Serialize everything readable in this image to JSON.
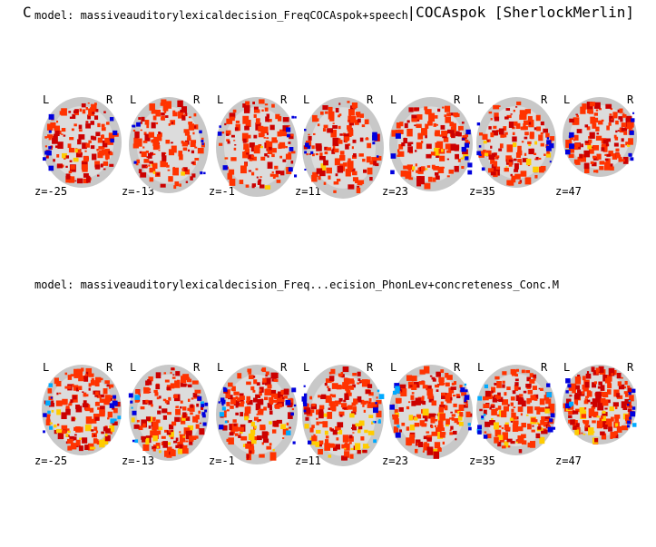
{
  "panel_letter": "C",
  "figure_title_right": "|COCAspok [SherlockMerlin]",
  "rows": [
    {
      "title": "model: massiveauditorylexicaldecision_FreqCOCAspok+speech",
      "slices": [
        {
          "z": "z=-25",
          "left": "L",
          "right": "R"
        },
        {
          "z": "z=-13",
          "left": "L",
          "right": "R"
        },
        {
          "z": "z=-1",
          "left": "L",
          "right": "R"
        },
        {
          "z": "z=11",
          "left": "L",
          "right": "R"
        },
        {
          "z": "z=23",
          "left": "L",
          "right": "R"
        },
        {
          "z": "z=35",
          "left": "L",
          "right": "R"
        },
        {
          "z": "z=47",
          "left": "L",
          "right": "R"
        }
      ]
    },
    {
      "title": "model: massiveauditorylexicaldecision_Freq...ecision_PhonLev+concreteness_Conc.M",
      "slices": [
        {
          "z": "z=-25",
          "left": "L",
          "right": "R"
        },
        {
          "z": "z=-13",
          "left": "L",
          "right": "R"
        },
        {
          "z": "z=-1",
          "left": "L",
          "right": "R"
        },
        {
          "z": "z=11",
          "left": "L",
          "right": "R"
        },
        {
          "z": "z=23",
          "left": "L",
          "right": "R"
        },
        {
          "z": "z=35",
          "left": "L",
          "right": "R"
        },
        {
          "z": "z=47",
          "left": "L",
          "right": "R"
        }
      ]
    }
  ],
  "colors": {
    "positive_low": "#cc0000",
    "positive_mid": "#ff3300",
    "positive_high": "#ffcc00",
    "negative_low": "#0000dd",
    "negative_high": "#00aaff",
    "brain_gray": "#c8c8c8"
  }
}
